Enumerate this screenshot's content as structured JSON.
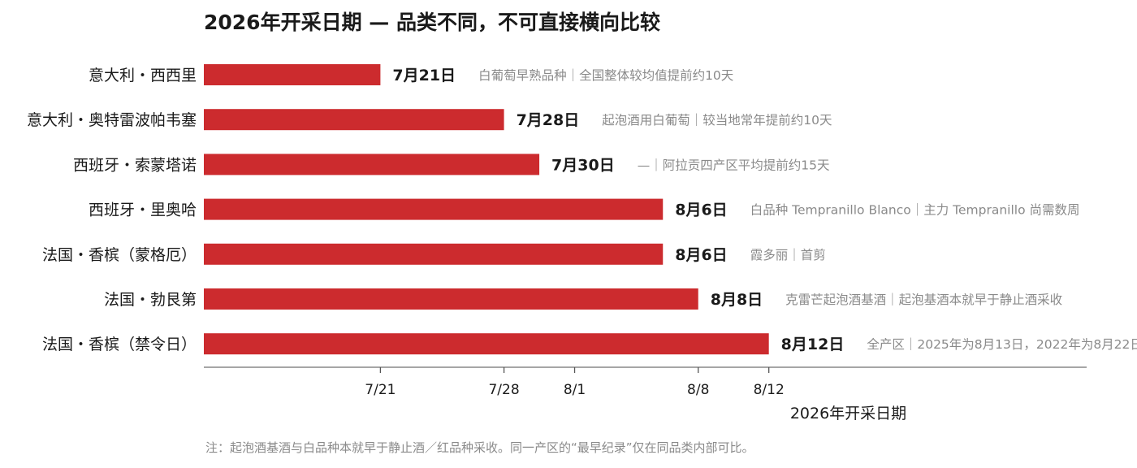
{
  "chart_data": {
    "type": "bar",
    "orientation": "horizontal",
    "title": "2026年开采日期 — 品类不同，不可直接横向比较",
    "xlabel": "2026年开采日期",
    "ylabel": "",
    "categories": [
      "意大利・西西里",
      "意大利・奥特雷波帕韦塞",
      "西班牙・索蒙塔诺",
      "西班牙・里奥哈",
      "法国・香槟（蒙格厄）",
      "法国・勃艮第",
      "法国・香槟（禁令日）"
    ],
    "values": [
      "2026-07-21",
      "2026-07-28",
      "2026-07-30",
      "2026-08-06",
      "2026-08-06",
      "2026-08-08",
      "2026-08-12"
    ],
    "value_labels": [
      "7月21日",
      "7月28日",
      "7月30日",
      "8月6日",
      "8月6日",
      "8月8日",
      "8月12日"
    ],
    "annotations": [
      "白葡萄早熟品种｜全国整体较均值提前约10天",
      "起泡酒用白葡萄｜较当地常年提前约10天",
      "—｜阿拉贡四产区平均提前约15天",
      "白品种 Tempranillo Blanco｜主力 Tempranillo 尚需数周",
      "霞多丽｜首剪",
      "克雷芒起泡酒基酒｜起泡基酒本就早于静止酒采收",
      "全产区｜2025年为8月13日，2022年为8月22日"
    ],
    "xlim": [
      "2026-07-11",
      "2026-08-30"
    ],
    "xticks": [
      "2026-07-21",
      "2026-07-28",
      "2026-08-01",
      "2026-08-08",
      "2026-08-12"
    ],
    "xtick_labels": [
      "7/21",
      "7/28",
      "8/1",
      "8/8",
      "8/12"
    ],
    "bar_color": "#cc2b2e",
    "grid": false,
    "legend": "none",
    "note": "注：起泡酒基酒与白品种本就早于静止酒／红品种采收。同一产区的“最早纪录”仅在同品类内部可比。"
  }
}
